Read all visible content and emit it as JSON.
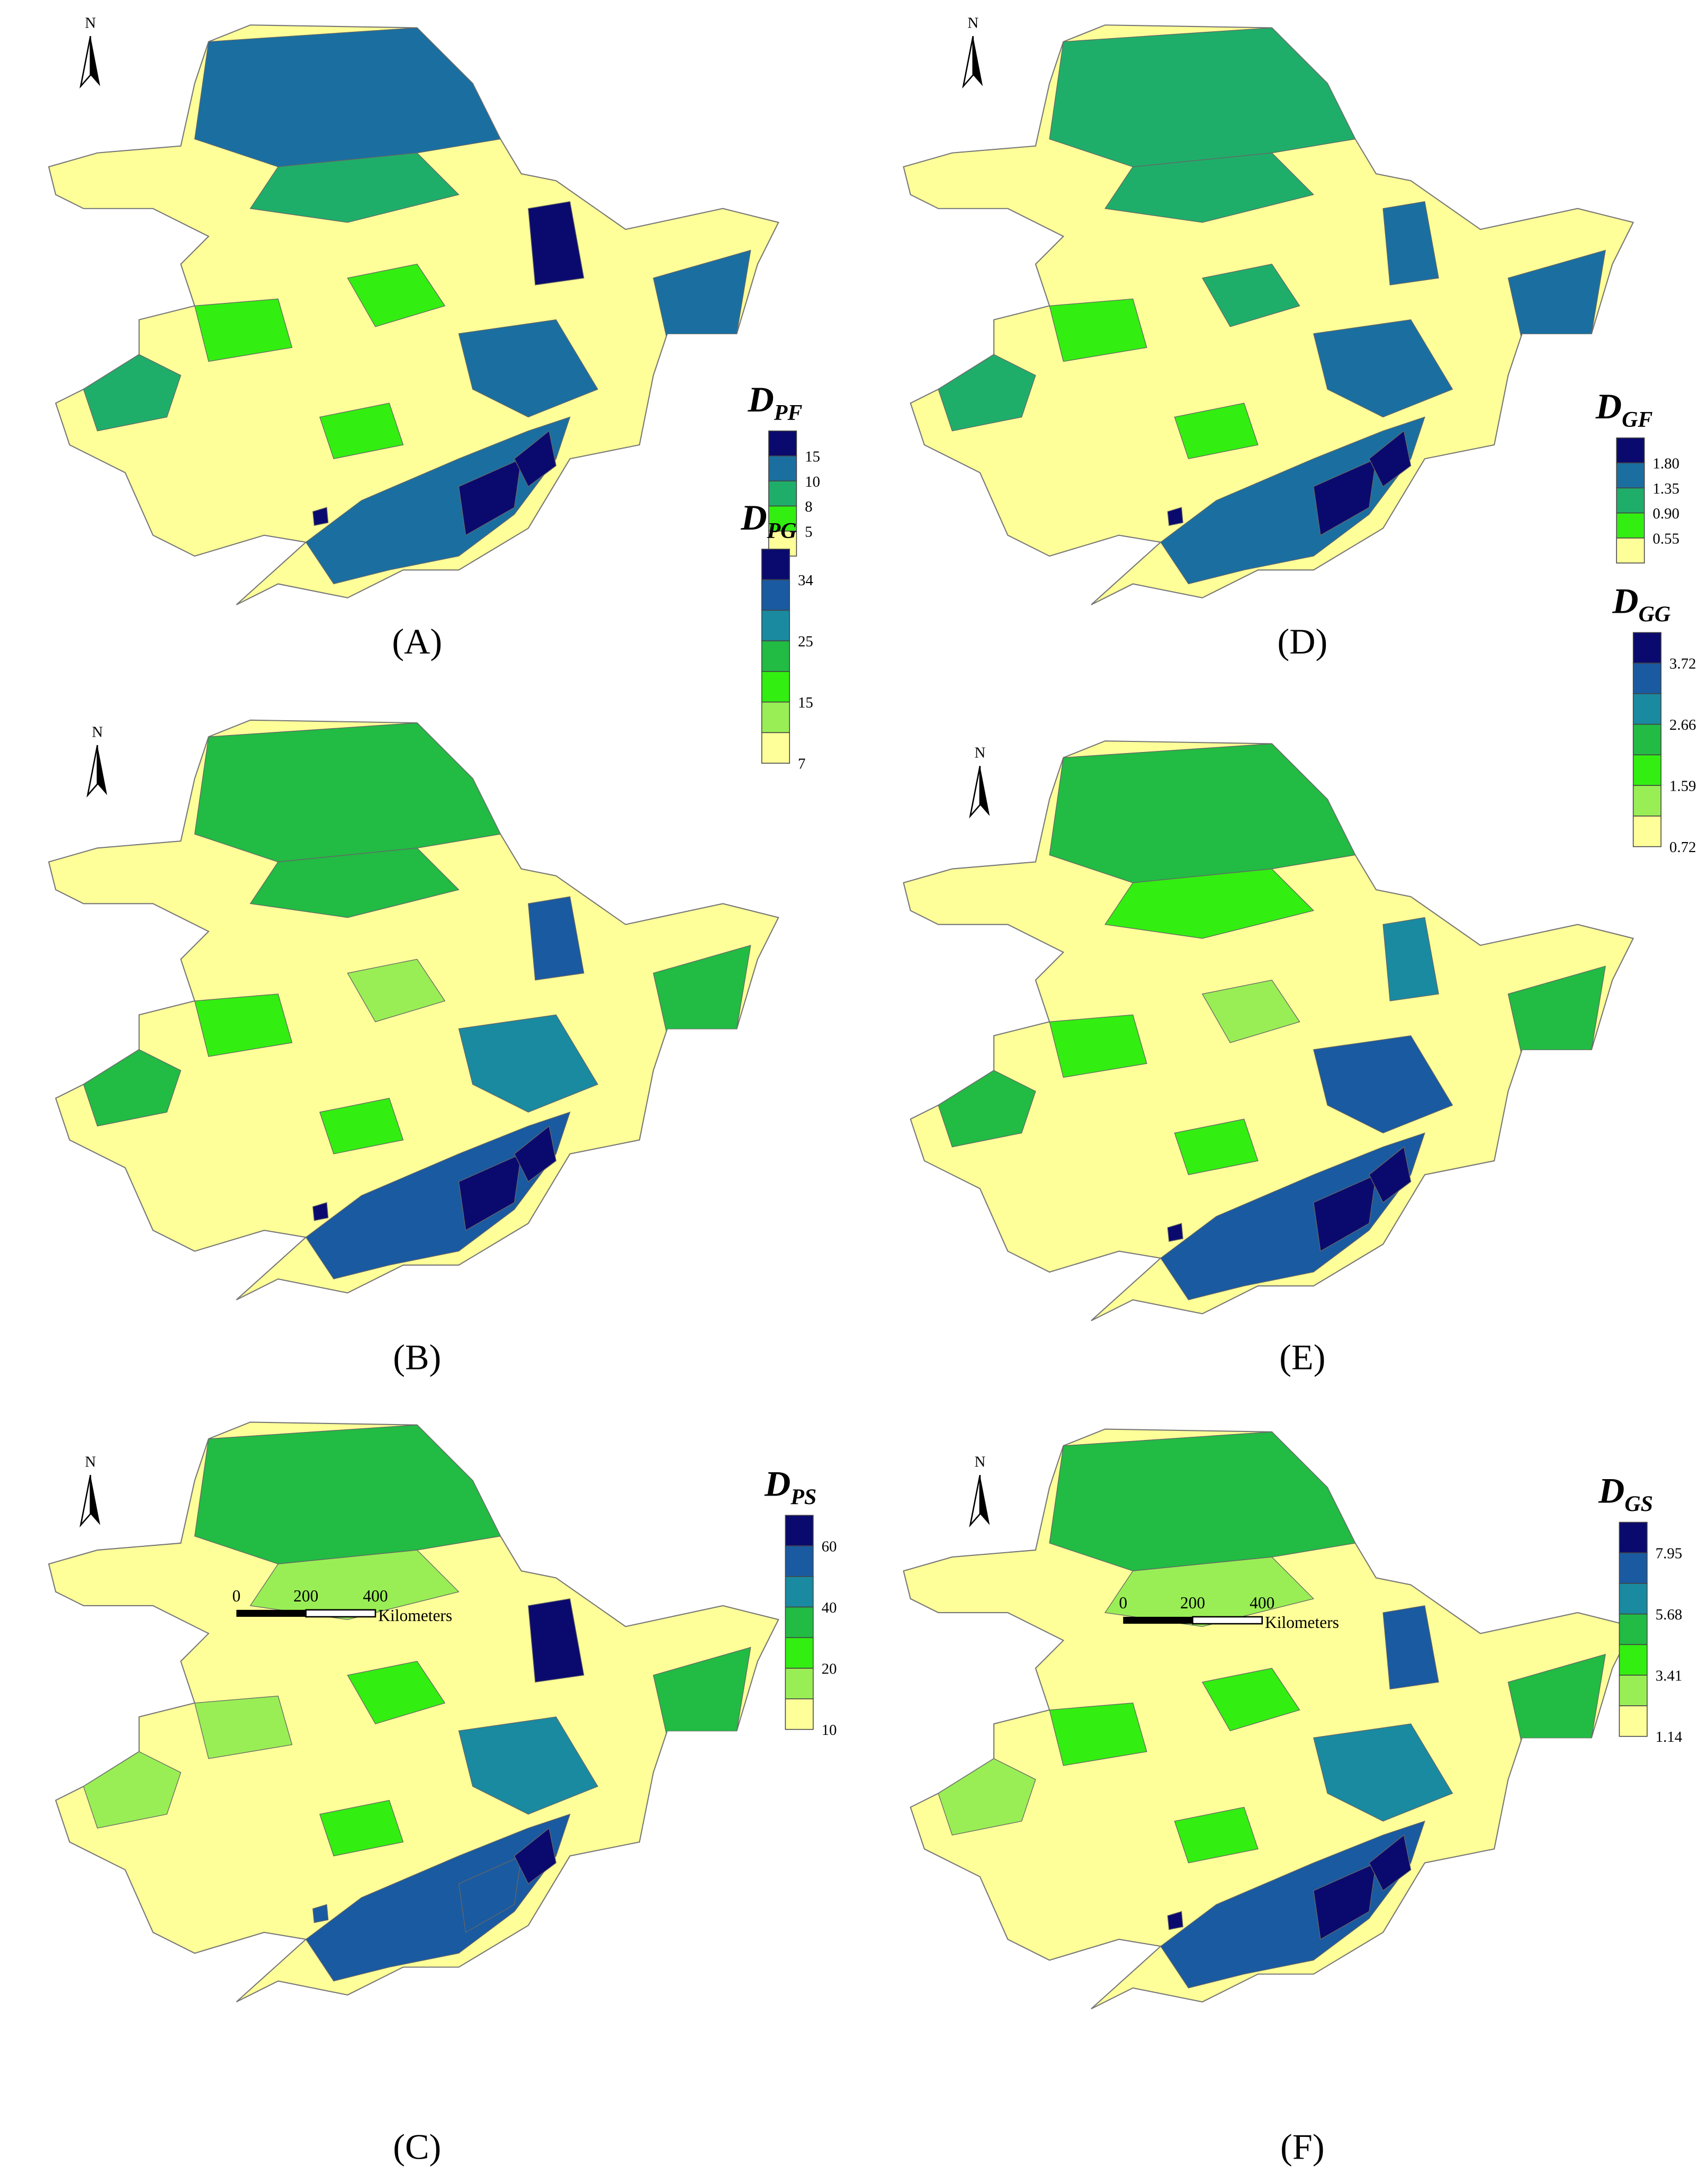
{
  "panels": [
    {
      "label": "(A)",
      "north": "N",
      "legend_title": {
        "main": "D",
        "sub": "PF"
      },
      "legend_labels": [
        "15",
        "10",
        "8",
        "5"
      ],
      "legend_colors": [
        "#0a0a6e",
        "#1a6fa0",
        "#1fae6a",
        "#33ee11",
        "#ffff99"
      ]
    },
    {
      "label": "(B)",
      "north": "N",
      "legend_title": {
        "main": "D",
        "sub": "PG"
      },
      "legend_labels": [
        "34",
        "25",
        "15",
        "7"
      ],
      "legend_colors": [
        "#0a0a6e",
        "#1a5aa0",
        "#1a8aa0",
        "#22bb44",
        "#33ee11",
        "#99ee55",
        "#ffff99"
      ]
    },
    {
      "label": "(C)",
      "north": "N",
      "legend_title": {
        "main": "D",
        "sub": "PS"
      },
      "legend_labels": [
        "60",
        "40",
        "20",
        "10"
      ],
      "legend_colors": [
        "#0a0a6e",
        "#1a5aa0",
        "#1a8aa0",
        "#22bb44",
        "#33ee11",
        "#99ee55",
        "#ffff99"
      ],
      "scale_bar": {
        "ticks": [
          "0",
          "200",
          "400"
        ],
        "unit": "Kilometers"
      }
    },
    {
      "label": "(D)",
      "north": "N",
      "legend_title": {
        "main": "D",
        "sub": "GF"
      },
      "legend_labels": [
        "1.80",
        "1.35",
        "0.90",
        "0.55"
      ],
      "legend_colors": [
        "#0a0a6e",
        "#1a6fa0",
        "#1fae6a",
        "#33ee11",
        "#ffff99"
      ]
    },
    {
      "label": "(E)",
      "north": "N",
      "legend_title": {
        "main": "D",
        "sub": "GG"
      },
      "legend_labels": [
        "3.72",
        "2.66",
        "1.59",
        "0.72"
      ],
      "legend_colors": [
        "#0a0a6e",
        "#1a5aa0",
        "#1a8aa0",
        "#22bb44",
        "#33ee11",
        "#99ee55",
        "#ffff99"
      ]
    },
    {
      "label": "(F)",
      "north": "N",
      "legend_title": {
        "main": "D",
        "sub": "GS"
      },
      "legend_labels": [
        "7.95",
        "5.68",
        "3.41",
        "1.14"
      ],
      "legend_colors": [
        "#0a0a6e",
        "#1a5aa0",
        "#1a8aa0",
        "#22bb44",
        "#33ee11",
        "#99ee55",
        "#ffff99"
      ],
      "scale_bar": {
        "ticks": [
          "0",
          "200",
          "400"
        ],
        "unit": "Kilometers"
      }
    }
  ]
}
